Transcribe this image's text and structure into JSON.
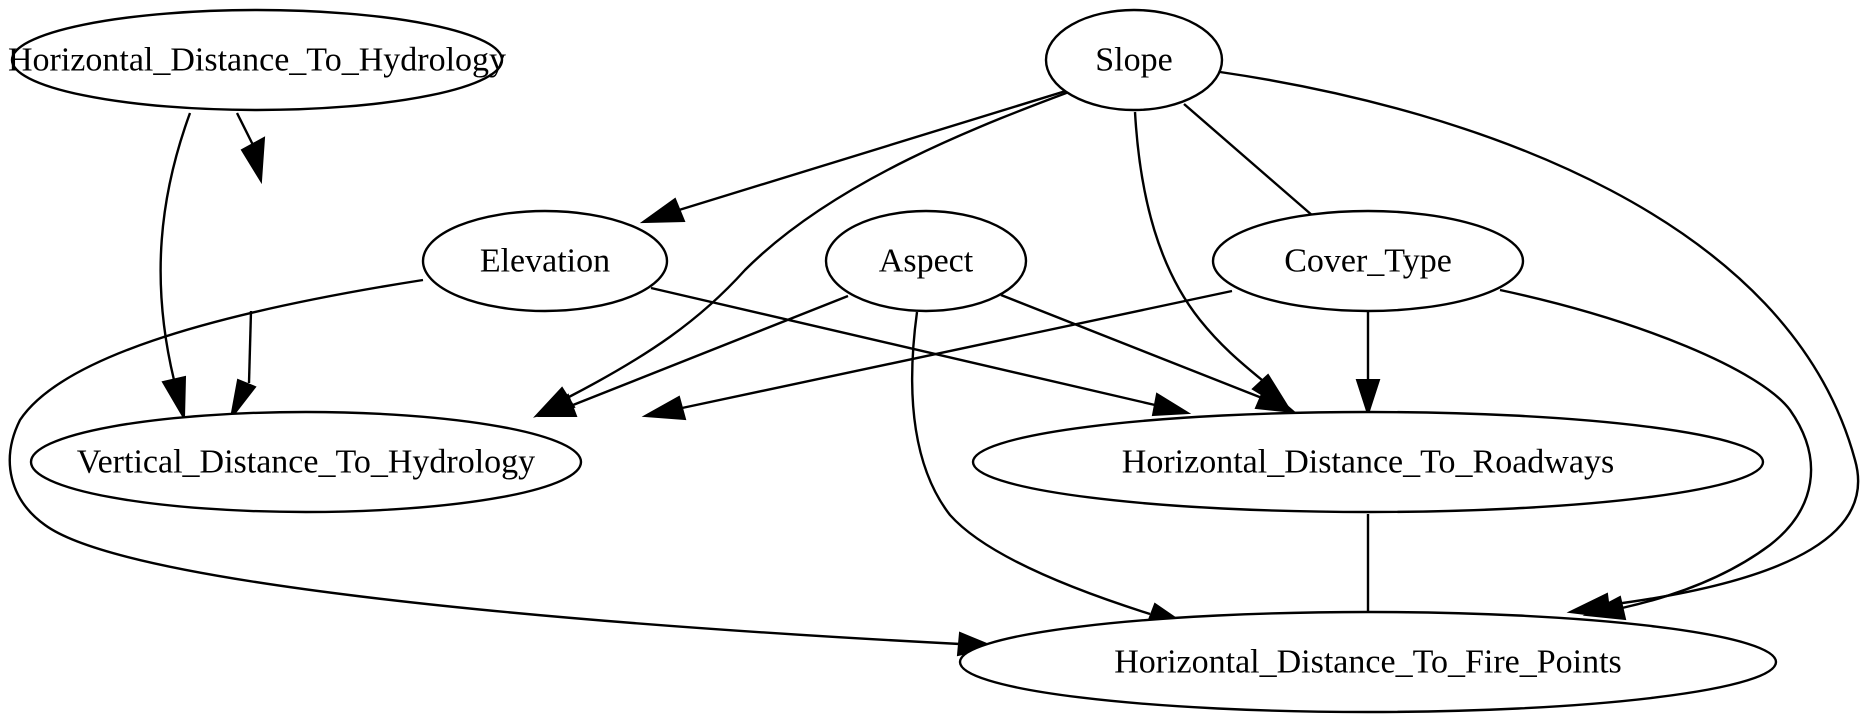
{
  "nodes": [
    {
      "id": "hd_hydrology",
      "label": "Horizontal_Distance_To_Hydrology"
    },
    {
      "id": "slope",
      "label": "Slope"
    },
    {
      "id": "elevation",
      "label": "Elevation"
    },
    {
      "id": "aspect",
      "label": "Aspect"
    },
    {
      "id": "cover_type",
      "label": "Cover_Type"
    },
    {
      "id": "vd_hydrology",
      "label": "Vertical_Distance_To_Hydrology"
    },
    {
      "id": "hd_roadways",
      "label": "Horizontal_Distance_To_Roadways"
    },
    {
      "id": "hd_fire_points",
      "label": "Horizontal_Distance_To_Fire_Points"
    }
  ],
  "edges": [
    {
      "from": "hd_hydrology",
      "to": "elevation",
      "directed": true
    },
    {
      "from": "hd_hydrology",
      "to": "vd_hydrology",
      "directed": true
    },
    {
      "from": "slope",
      "to": "elevation",
      "directed": true
    },
    {
      "from": "slope",
      "to": "vd_hydrology",
      "directed": true
    },
    {
      "from": "slope",
      "to": "hd_roadways",
      "directed": true
    },
    {
      "from": "slope",
      "to": "cover_type",
      "directed": false
    },
    {
      "from": "slope",
      "to": "hd_fire_points",
      "directed": true
    },
    {
      "from": "elevation",
      "to": "vd_hydrology",
      "directed": true
    },
    {
      "from": "elevation",
      "to": "hd_roadways",
      "directed": true
    },
    {
      "from": "elevation",
      "to": "hd_fire_points",
      "directed": true
    },
    {
      "from": "aspect",
      "to": "vd_hydrology",
      "directed": true
    },
    {
      "from": "aspect",
      "to": "hd_roadways",
      "directed": true
    },
    {
      "from": "aspect",
      "to": "hd_fire_points",
      "directed": true
    },
    {
      "from": "cover_type",
      "to": "vd_hydrology",
      "directed": true
    },
    {
      "from": "cover_type",
      "to": "hd_roadways",
      "directed": true
    },
    {
      "from": "cover_type",
      "to": "hd_fire_points",
      "directed": true
    },
    {
      "from": "hd_roadways",
      "to": "hd_fire_points",
      "directed": false
    }
  ]
}
